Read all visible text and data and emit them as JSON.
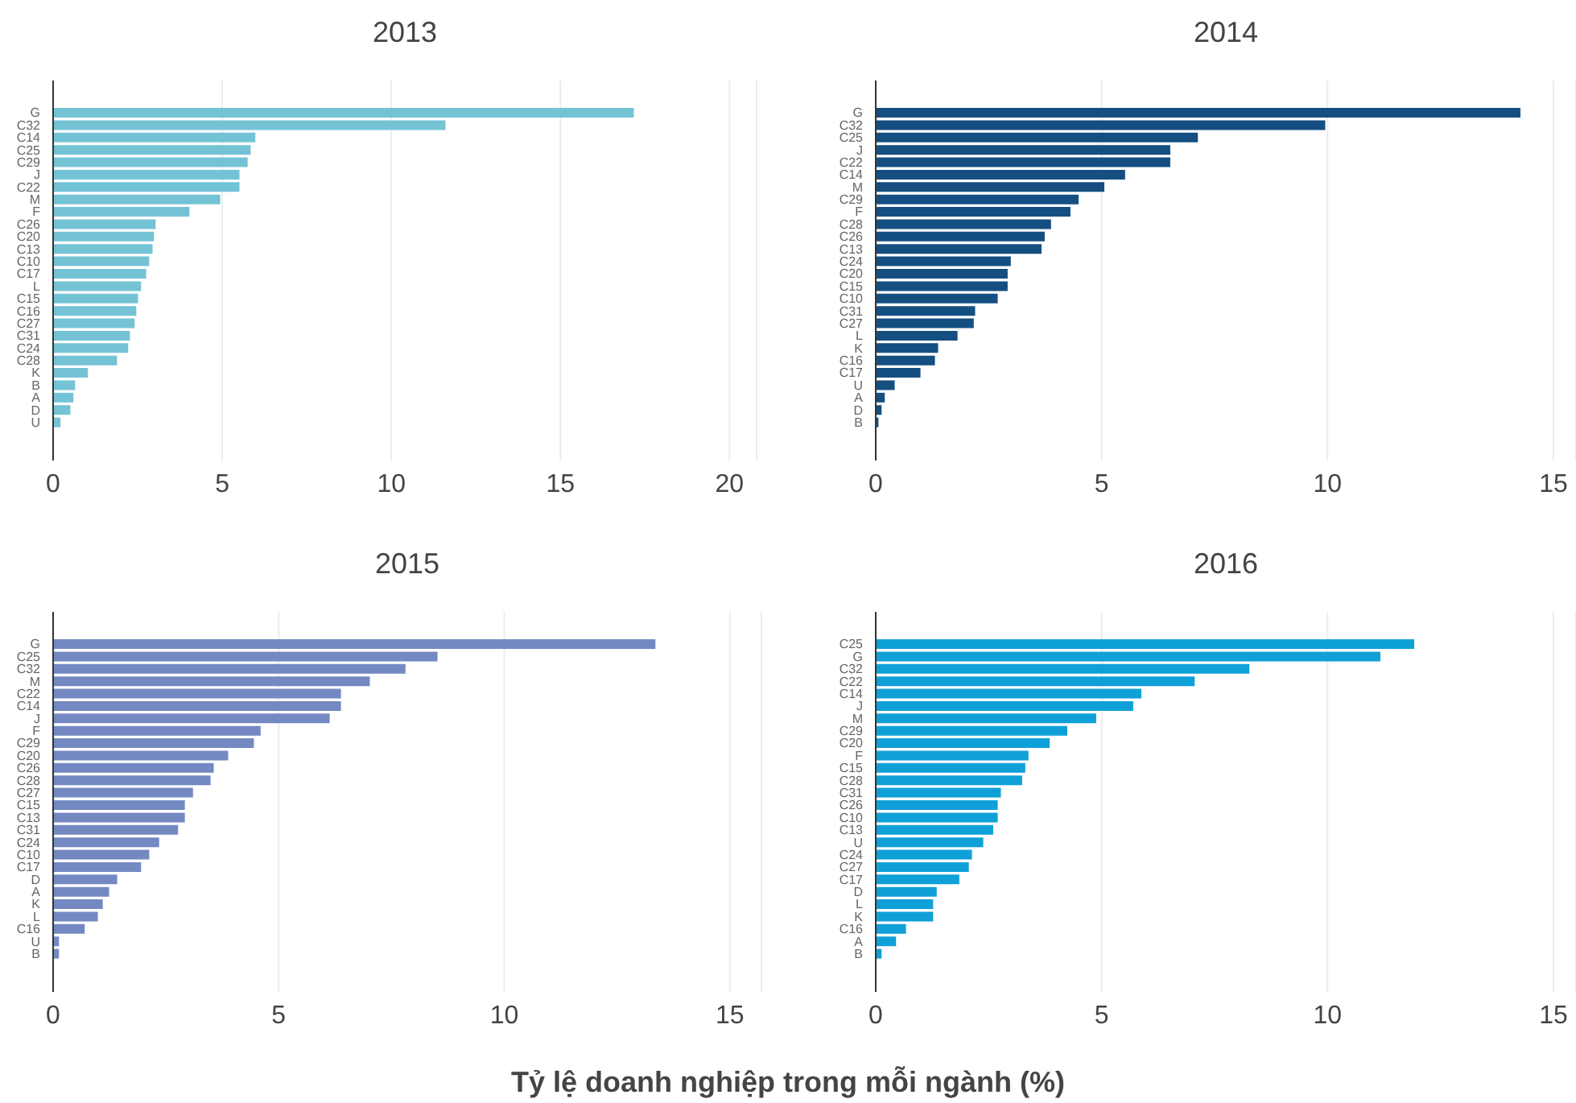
{
  "chart_data": [
    {
      "type": "bar",
      "orientation": "horizontal",
      "title": "2013",
      "color": "#74c3d5",
      "grid": "x",
      "xlim": [
        0,
        20.8
      ],
      "xticks": [
        0,
        5,
        10,
        15,
        20
      ],
      "categories": [
        "G",
        "C32",
        "C14",
        "C25",
        "C29",
        "J",
        "C22",
        "M",
        "F",
        "C26",
        "C20",
        "C13",
        "C10",
        "C17",
        "L",
        "C15",
        "C16",
        "C27",
        "C31",
        "C24",
        "C28",
        "K",
        "B",
        "A",
        "D",
        "U"
      ],
      "values": [
        17.17,
        11.6,
        5.98,
        5.84,
        5.75,
        5.51,
        5.51,
        4.94,
        4.03,
        3.03,
        2.98,
        2.94,
        2.84,
        2.75,
        2.6,
        2.51,
        2.46,
        2.41,
        2.27,
        2.22,
        1.89,
        1.03,
        0.65,
        0.6,
        0.51,
        0.22
      ]
    },
    {
      "type": "bar",
      "orientation": "horizontal",
      "title": "2014",
      "color": "#154f82",
      "grid": "x",
      "xlim": [
        0,
        15.5
      ],
      "xticks": [
        0,
        5,
        10,
        15
      ],
      "categories": [
        "G",
        "C32",
        "C25",
        "J",
        "C22",
        "C14",
        "M",
        "C29",
        "F",
        "C28",
        "C26",
        "C13",
        "C24",
        "C20",
        "C15",
        "C10",
        "C31",
        "C27",
        "L",
        "K",
        "C16",
        "C17",
        "U",
        "A",
        "D",
        "B"
      ],
      "values": [
        14.27,
        9.95,
        7.13,
        6.52,
        6.52,
        5.52,
        5.06,
        4.49,
        4.31,
        3.88,
        3.74,
        3.67,
        2.99,
        2.92,
        2.92,
        2.7,
        2.2,
        2.17,
        1.81,
        1.38,
        1.31,
        0.99,
        0.42,
        0.2,
        0.13,
        0.06
      ]
    },
    {
      "type": "bar",
      "orientation": "horizontal",
      "title": "2015",
      "color": "#7489c1",
      "grid": "x",
      "xlim": [
        0,
        15.7
      ],
      "xticks": [
        0,
        5,
        10,
        15
      ],
      "categories": [
        "G",
        "C25",
        "C32",
        "M",
        "C22",
        "C14",
        "J",
        "F",
        "C29",
        "C20",
        "C26",
        "C28",
        "C27",
        "C15",
        "C13",
        "C31",
        "C24",
        "C10",
        "C17",
        "D",
        "A",
        "K",
        "L",
        "C16",
        "U",
        "B"
      ],
      "values": [
        13.35,
        8.52,
        7.81,
        7.02,
        6.38,
        6.38,
        6.13,
        4.6,
        4.45,
        3.88,
        3.56,
        3.49,
        3.1,
        2.92,
        2.92,
        2.77,
        2.35,
        2.13,
        1.95,
        1.42,
        1.24,
        1.1,
        0.99,
        0.7,
        0.13,
        0.13
      ]
    },
    {
      "type": "bar",
      "orientation": "horizontal",
      "title": "2016",
      "color": "#0fa0d8",
      "grid": "x",
      "xlim": [
        0,
        15.5
      ],
      "xticks": [
        0,
        5,
        10,
        15
      ],
      "xlabel": "Tỷ lệ doanh nghiệp trong mỗi ngành (%)",
      "categories": [
        "C25",
        "G",
        "C32",
        "C22",
        "C14",
        "J",
        "M",
        "C29",
        "C20",
        "F",
        "C15",
        "C28",
        "C31",
        "C26",
        "C10",
        "C13",
        "U",
        "C24",
        "C27",
        "C17",
        "D",
        "L",
        "K",
        "C16",
        "A",
        "B"
      ],
      "values": [
        11.92,
        11.17,
        8.27,
        7.06,
        5.88,
        5.7,
        4.88,
        4.24,
        3.85,
        3.38,
        3.31,
        3.24,
        2.77,
        2.7,
        2.7,
        2.6,
        2.38,
        2.13,
        2.06,
        1.85,
        1.35,
        1.27,
        1.27,
        0.67,
        0.45,
        0.13
      ]
    }
  ]
}
